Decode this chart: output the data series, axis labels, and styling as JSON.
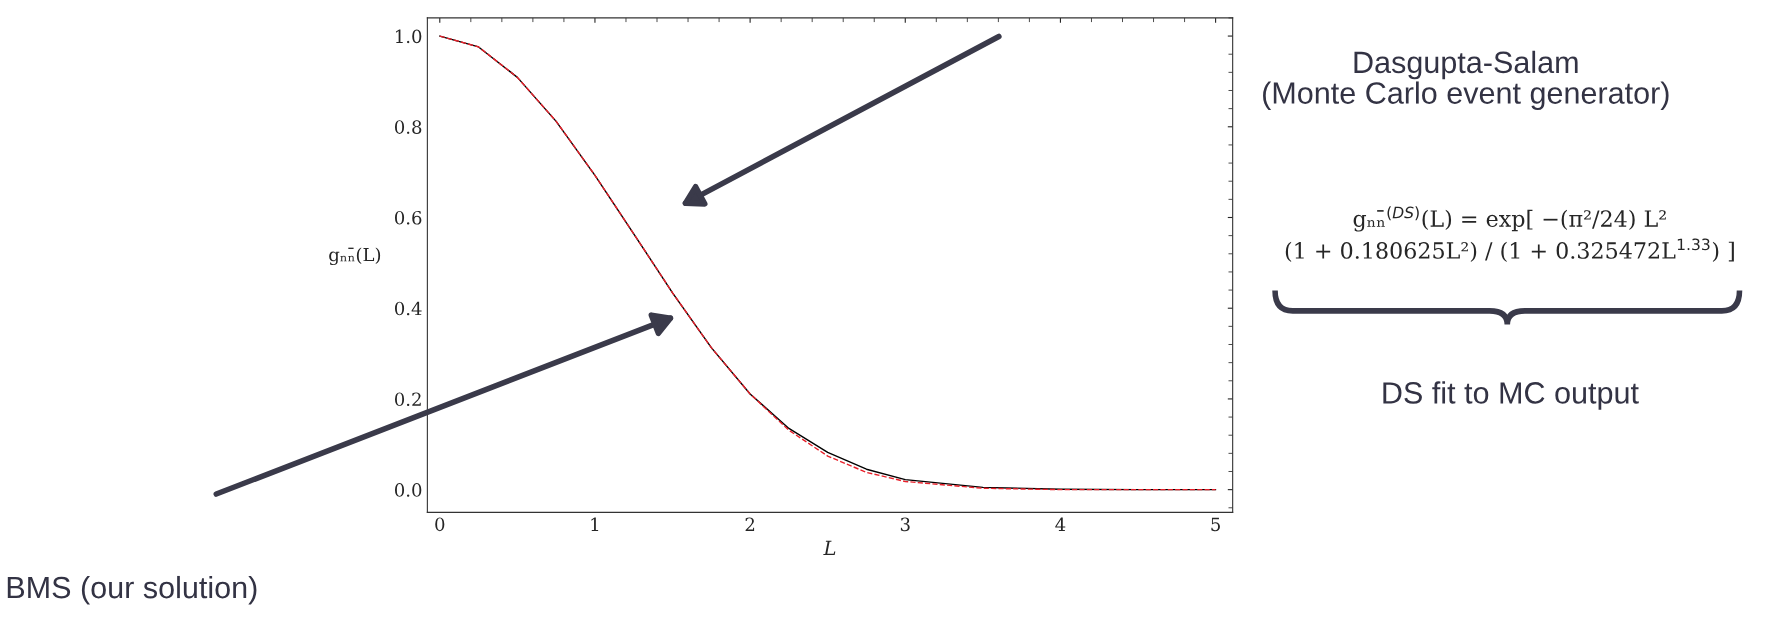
{
  "chart_data": {
    "type": "line",
    "xlabel": "L",
    "ylabel": "gₙₙ̄(L)",
    "xlim": [
      -0.08,
      5.11
    ],
    "ylim": [
      -0.05,
      1.04
    ],
    "xticks": [
      0,
      1,
      2,
      3,
      4,
      5
    ],
    "yticks": [
      {
        "value": 0,
        "label": "0.0"
      },
      0.2,
      0.4,
      0.6,
      0.8,
      {
        "value": 1,
        "label": "1.0"
      }
    ],
    "x": [
      0,
      0.25,
      0.5,
      0.75,
      1,
      1.25,
      1.5,
      1.75,
      2,
      2.25,
      2.5,
      2.75,
      3,
      3.5,
      4,
      4.5,
      5
    ],
    "series": [
      {
        "color": "#000000",
        "line_style": "solid",
        "values": [
          1,
          0.976,
          0.909,
          0.812,
          0.693,
          0.564,
          0.434,
          0.313,
          0.211,
          0.135,
          0.082,
          0.045,
          0.022,
          0.005,
          0.001,
          0,
          0
        ]
      },
      {
        "color": "#e8202a",
        "line_style": "dashed",
        "values": [
          1,
          0.976,
          0.909,
          0.812,
          0.693,
          0.564,
          0.434,
          0.313,
          0.211,
          0.131,
          0.074,
          0.038,
          0.018,
          0.003,
          0,
          0,
          0
        ]
      }
    ],
    "grid": false,
    "legend": false,
    "annotations": [
      "Dasgupta-Salam\n(Monte Carlo event generator)",
      "BMS (our solution)",
      "gₙₙ̄$^{(DS)}$(L) = exp[ −(π²/24) L²\n(1 + 0.180625L²) / (1 + 0.325472L$^{1.33}$) ]",
      "DS fit to MC output"
    ]
  }
}
